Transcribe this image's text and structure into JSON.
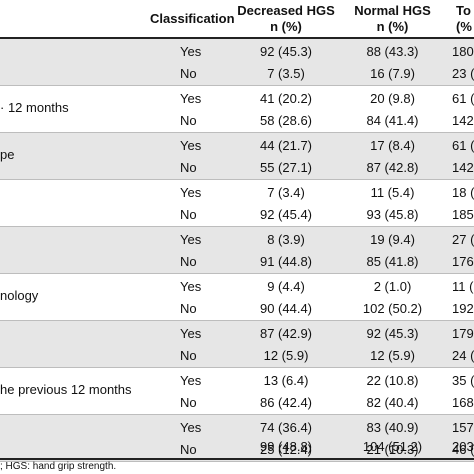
{
  "header": {
    "classification": "Classification",
    "decreased_line1": "Decreased HGS",
    "decreased_line2": "n (%)",
    "normal_line1": "Normal HGS",
    "normal_line2": "n (%)",
    "total_line1": "To",
    "total_line2": "(%"
  },
  "blocks": [
    {
      "label": "",
      "rows": [
        {
          "class": "Yes",
          "dec": "92 (45.3)",
          "norm": "88 (43.3)",
          "tot": "180 ("
        },
        {
          "class": "No",
          "dec": "7 (3.5)",
          "norm": "16 (7.9)",
          "tot": "23 ("
        }
      ]
    },
    {
      "label": "· 12 months",
      "rows": [
        {
          "class": "Yes",
          "dec": "41 (20.2)",
          "norm": "20 (9.8)",
          "tot": "61 ("
        },
        {
          "class": "No",
          "dec": "58 (28.6)",
          "norm": "84 (41.4)",
          "tot": "142 ("
        }
      ]
    },
    {
      "label": "pe",
      "rows": [
        {
          "class": "Yes",
          "dec": "44 (21.7)",
          "norm": "17 (8.4)",
          "tot": "61 ("
        },
        {
          "class": "No",
          "dec": "55 (27.1)",
          "norm": "87 (42.8)",
          "tot": "142 ("
        }
      ]
    },
    {
      "label": "",
      "rows": [
        {
          "class": "Yes",
          "dec": "7 (3.4)",
          "norm": "11 (5.4)",
          "tot": "18 ("
        },
        {
          "class": "No",
          "dec": "92 (45.4)",
          "norm": "93 (45.8)",
          "tot": "185"
        }
      ]
    },
    {
      "label": "",
      "rows": [
        {
          "class": "Yes",
          "dec": "8 (3.9)",
          "norm": "19 (9.4)",
          "tot": "27 ("
        },
        {
          "class": "No",
          "dec": "91 (44.8)",
          "norm": "85 (41.8)",
          "tot": "176"
        }
      ]
    },
    {
      "label": "nology",
      "rows": [
        {
          "class": "Yes",
          "dec": "9 (4.4)",
          "norm": "2 (1.0)",
          "tot": "11 ("
        },
        {
          "class": "No",
          "dec": "90 (44.4)",
          "norm": "102 (50.2)",
          "tot": "192"
        }
      ]
    },
    {
      "label": "",
      "rows": [
        {
          "class": "Yes",
          "dec": "87 (42.9)",
          "norm": "92 (45.3)",
          "tot": "179"
        },
        {
          "class": "No",
          "dec": "12 (5.9)",
          "norm": "12 (5.9)",
          "tot": "24 ("
        }
      ]
    },
    {
      "label": "he previous 12 months",
      "rows": [
        {
          "class": "Yes",
          "dec": "13 (6.4)",
          "norm": "22 (10.8)",
          "tot": "35 ("
        },
        {
          "class": "No",
          "dec": "86 (42.4)",
          "norm": "82 (40.4)",
          "tot": "168"
        }
      ]
    },
    {
      "label": "",
      "rows": [
        {
          "class": "Yes",
          "dec": "74 (36.4)",
          "norm": "83 (40.9)",
          "tot": "157"
        },
        {
          "class": "No",
          "dec": "25 (12.4)",
          "norm": "21 (10.3)",
          "tot": "46 ("
        }
      ]
    }
  ],
  "total": {
    "dec": "99 (48.8)",
    "norm": "104 (51.2)",
    "tot": "203"
  },
  "footnote": "; HGS: hand grip strength."
}
